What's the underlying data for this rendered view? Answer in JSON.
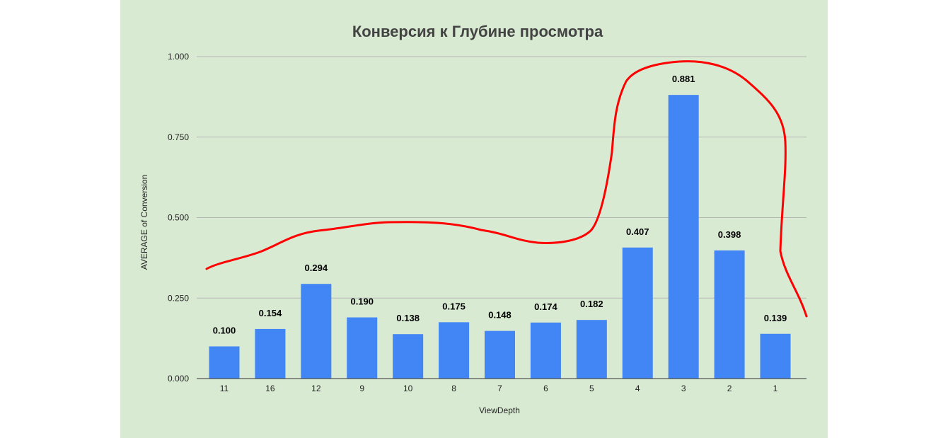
{
  "chart_data": {
    "type": "bar",
    "title": "Конверсия к Глубине просмотра",
    "xlabel": "ViewDepth",
    "ylabel": "AVERAGE of Conversion",
    "categories": [
      "11",
      "16",
      "12",
      "9",
      "10",
      "8",
      "7",
      "6",
      "5",
      "4",
      "3",
      "2",
      "1"
    ],
    "values": [
      0.1,
      0.154,
      0.294,
      0.19,
      0.138,
      0.175,
      0.148,
      0.174,
      0.182,
      0.407,
      0.881,
      0.398,
      0.139
    ],
    "data_labels": [
      "0.100",
      "0.154",
      "0.294",
      "0.190",
      "0.138",
      "0.175",
      "0.148",
      "0.174",
      "0.182",
      "0.407",
      "0.881",
      "0.398",
      "0.139"
    ],
    "yticks": [
      0,
      0.25,
      0.5,
      0.75,
      1.0
    ],
    "ytick_labels": [
      "0.000",
      "0.250",
      "0.500",
      "0.750",
      "1.000"
    ],
    "ylim": [
      0,
      1.0
    ],
    "grid": true,
    "legend": "none",
    "colors": {
      "background": "#d9ead3",
      "bar": "#4285f4",
      "annotation": "#ff0000"
    },
    "annotation": {
      "type": "hand-drawn freehand curve",
      "color": "#ff0000"
    }
  }
}
